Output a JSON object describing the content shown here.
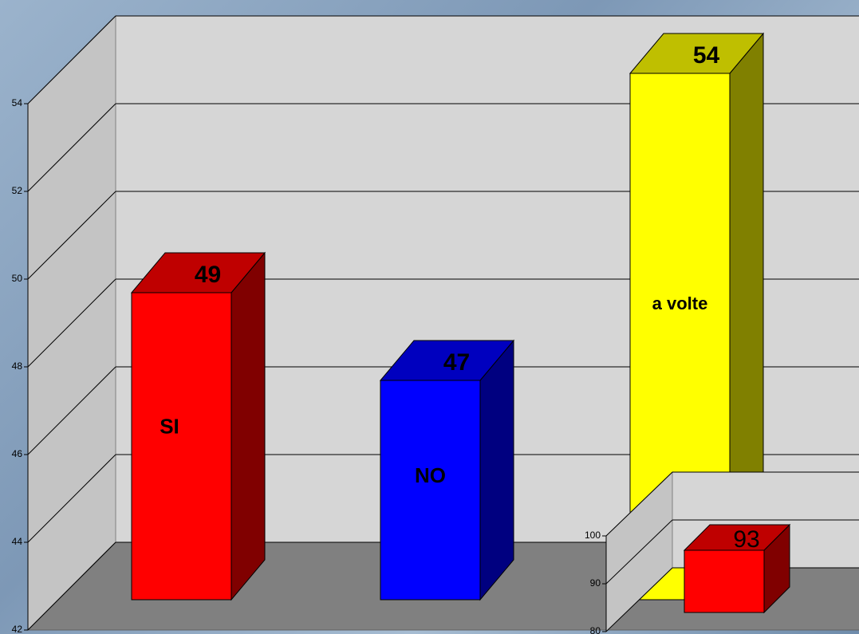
{
  "chart_data": [
    {
      "type": "bar3d",
      "categories": [
        "SI",
        "NO",
        "a volte"
      ],
      "values": [
        49,
        47,
        54
      ],
      "colors": [
        "#ff0000",
        "#0000ff",
        "#ffff00"
      ],
      "ylim": [
        42,
        54
      ],
      "yticks": [
        42,
        44,
        46,
        48,
        50,
        52,
        54
      ],
      "grid": true
    },
    {
      "type": "bar3d",
      "values": [
        93
      ],
      "colors": [
        "#ff0000"
      ],
      "ylim": [
        80,
        100
      ],
      "yticks": [
        80,
        90,
        100
      ],
      "grid": true
    }
  ]
}
